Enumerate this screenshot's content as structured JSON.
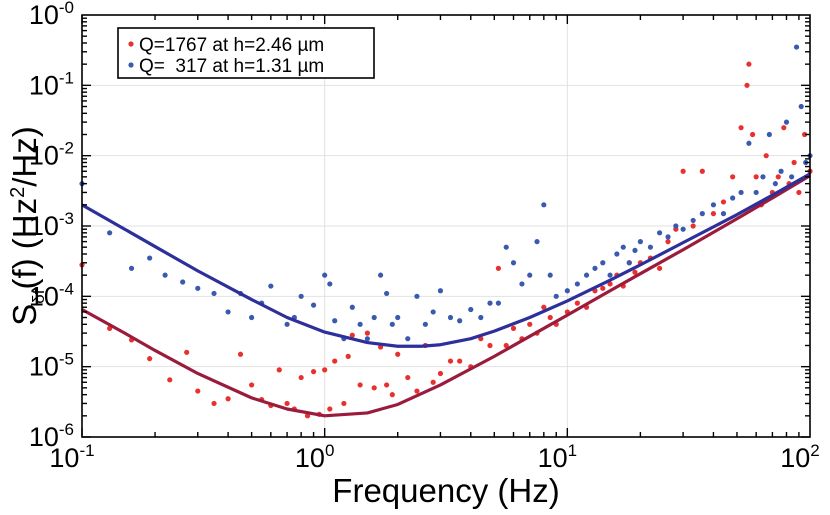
{
  "chart_data": {
    "type": "scatter",
    "title": "",
    "xlabel": "Frequency (Hz)",
    "ylabel_main": "S",
    "ylabel_sub": "δf",
    "ylabel_rest": "(f) (Hz",
    "ylabel_sup": "2",
    "ylabel_tail": "/Hz)",
    "xscale": "log",
    "yscale": "log",
    "xlim": [
      0.1,
      100
    ],
    "ylim": [
      1e-06,
      1
    ],
    "grid": true,
    "legend_position": "top-left",
    "x_ticks": [
      {
        "value": 0.1,
        "base": "10",
        "exp": "-1"
      },
      {
        "value": 1,
        "base": "10",
        "exp": "0"
      },
      {
        "value": 10,
        "base": "10",
        "exp": "1"
      },
      {
        "value": 100,
        "base": "10",
        "exp": "2"
      }
    ],
    "y_ticks": [
      {
        "value": 1e-06,
        "base": "10",
        "exp": "-6"
      },
      {
        "value": 1e-05,
        "base": "10",
        "exp": "-5"
      },
      {
        "value": 0.0001,
        "base": "10",
        "exp": "-4"
      },
      {
        "value": 0.001,
        "base": "10",
        "exp": "-3"
      },
      {
        "value": 0.01,
        "base": "10",
        "exp": "-2"
      },
      {
        "value": 0.1,
        "base": "10",
        "exp": "-1"
      },
      {
        "value": 1,
        "base": "10",
        "exp": "-0"
      }
    ],
    "series": [
      {
        "name": "Q=1767 at h=2.46 µm",
        "color": "#e8312f",
        "fit_color": "#9b1b3c",
        "fit_x": [
          0.1,
          0.15,
          0.2,
          0.3,
          0.5,
          0.7,
          1.0,
          1.5,
          2,
          3,
          5,
          7,
          10,
          15,
          20,
          30,
          50,
          70,
          100
        ],
        "fit_y": [
          6.5e-05,
          3e-05,
          1.7e-05,
          8e-06,
          3.6e-06,
          2.5e-06,
          2e-06,
          2.2e-06,
          2.9e-06,
          5.5e-06,
          1.4e-05,
          2.7e-05,
          5.4e-05,
          0.00012,
          0.00021,
          0.00046,
          0.00127,
          0.0025,
          0.0052
        ],
        "points_x": [
          0.1,
          0.13,
          0.16,
          0.19,
          0.23,
          0.27,
          0.3,
          0.35,
          0.4,
          0.45,
          0.5,
          0.55,
          0.6,
          0.65,
          0.7,
          0.75,
          0.8,
          0.85,
          0.9,
          0.95,
          1.0,
          1.05,
          1.1,
          1.2,
          1.25,
          1.3,
          1.4,
          1.5,
          1.6,
          1.7,
          1.8,
          1.9,
          2.0,
          2.2,
          2.4,
          2.6,
          2.8,
          3.0,
          3.3,
          3.6,
          4.0,
          4.4,
          4.8,
          5.2,
          5.6,
          6.0,
          6.5,
          7.0,
          7.5,
          8.0,
          8.5,
          9.0,
          10,
          11,
          12,
          13,
          14,
          15,
          16,
          17,
          18,
          19,
          20,
          22,
          24,
          26,
          28,
          30,
          33,
          36,
          40,
          44,
          48,
          52,
          55,
          56,
          58,
          60,
          63,
          66,
          70,
          74,
          78,
          82,
          86,
          90,
          95,
          100
        ],
        "points_y": [
          0.00028,
          3.5e-05,
          2.4e-05,
          1.3e-05,
          6.5e-06,
          1.6e-05,
          4.5e-06,
          3e-06,
          3.5e-06,
          1.5e-05,
          5.5e-06,
          3.4e-06,
          2.8e-06,
          9e-06,
          3e-06,
          2.5e-06,
          7e-06,
          2e-06,
          8.5e-06,
          2.1e-06,
          9e-06,
          2.5e-06,
          1.2e-05,
          3e-06,
          1.4e-05,
          2.8e-05,
          5.5e-06,
          3e-05,
          5e-06,
          1.9e-05,
          5.5e-06,
          4e-06,
          1.5e-05,
          7e-06,
          4.5e-06,
          2e-05,
          6e-06,
          8e-06,
          1.2e-05,
          1.2e-05,
          1e-05,
          2.5e-05,
          2e-05,
          0.00025,
          2e-05,
          3.5e-05,
          2.5e-05,
          4e-05,
          3e-05,
          7e-05,
          5e-05,
          4e-05,
          6e-05,
          8e-05,
          7e-05,
          0.00012,
          0.00013,
          0.00015,
          0.0002,
          0.00014,
          0.0003,
          0.00022,
          0.0003,
          0.00035,
          0.00025,
          0.0006,
          0.0009,
          0.006,
          0.001,
          0.006,
          0.0015,
          0.0022,
          0.005,
          0.025,
          0.1,
          0.2,
          0.02,
          0.005,
          0.002,
          0.01,
          0.003,
          0.005,
          0.025,
          0.004,
          0.008,
          0.003,
          0.02,
          0.006
        ]
      },
      {
        "name": "Q=  317 at h=1.31 µm",
        "color": "#3a5ab0",
        "fit_color": "#2d2f9a",
        "fit_x": [
          0.1,
          0.15,
          0.2,
          0.3,
          0.5,
          0.7,
          1.0,
          1.5,
          2,
          2.5,
          3,
          4,
          5,
          7,
          10,
          15,
          20,
          30,
          50,
          70,
          100
        ],
        "fit_y": [
          0.002,
          0.0009,
          0.00051,
          0.00023,
          9e-05,
          5e-05,
          3.1e-05,
          2.2e-05,
          1.95e-05,
          1.95e-05,
          2.05e-05,
          2.5e-05,
          3.2e-05,
          5e-05,
          8.6e-05,
          0.00017,
          0.00028,
          0.00058,
          0.00145,
          0.00275,
          0.0055
        ],
        "points_x": [
          0.1,
          0.13,
          0.16,
          0.19,
          0.22,
          0.26,
          0.3,
          0.35,
          0.4,
          0.45,
          0.5,
          0.55,
          0.6,
          0.7,
          0.75,
          0.8,
          0.9,
          1.0,
          1.05,
          1.1,
          1.2,
          1.3,
          1.4,
          1.5,
          1.6,
          1.7,
          1.8,
          1.9,
          2.0,
          2.2,
          2.4,
          2.6,
          2.8,
          3.0,
          3.3,
          3.6,
          4.0,
          4.4,
          4.8,
          5.2,
          5.6,
          6.0,
          6.5,
          7.0,
          7.5,
          8.0,
          8.5,
          9.0,
          10,
          11,
          12,
          13,
          14,
          15,
          16,
          17,
          18,
          19,
          20,
          22,
          24,
          26,
          28,
          30,
          33,
          36,
          40,
          44,
          48,
          52,
          56,
          60,
          64,
          68,
          72,
          76,
          80,
          84,
          88,
          92,
          96,
          100
        ],
        "points_x_note": "",
        "points_y": [
          0.004,
          0.0008,
          0.00025,
          0.00035,
          0.0002,
          0.00016,
          0.00013,
          0.00011,
          6e-05,
          0.00011,
          5e-05,
          8e-05,
          0.00014,
          4e-05,
          5e-05,
          0.0001,
          7.5e-05,
          0.0002,
          0.00015,
          4.5e-05,
          2.5e-05,
          7e-05,
          4e-05,
          2.5e-05,
          5e-05,
          0.0002,
          0.00011,
          4e-05,
          5e-05,
          2.5e-05,
          0.0001,
          4e-05,
          6e-05,
          0.00012,
          5e-05,
          4.5e-05,
          6.5e-05,
          5e-05,
          8e-05,
          8e-05,
          0.0005,
          0.0003,
          0.00015,
          0.0002,
          0.0006,
          0.002,
          0.0002,
          0.0001,
          0.00012,
          0.00015,
          0.0002,
          0.00025,
          0.0003,
          0.0002,
          0.0004,
          0.0005,
          0.0003,
          0.00045,
          0.0006,
          0.0005,
          0.0008,
          0.0007,
          0.001,
          0.0009,
          0.0012,
          0.0015,
          0.002,
          0.0015,
          0.0025,
          0.003,
          0.015,
          0.003,
          0.005,
          0.02,
          0.004,
          0.006,
          0.03,
          0.005,
          0.35,
          0.05,
          0.008,
          0.01
        ]
      }
    ]
  }
}
